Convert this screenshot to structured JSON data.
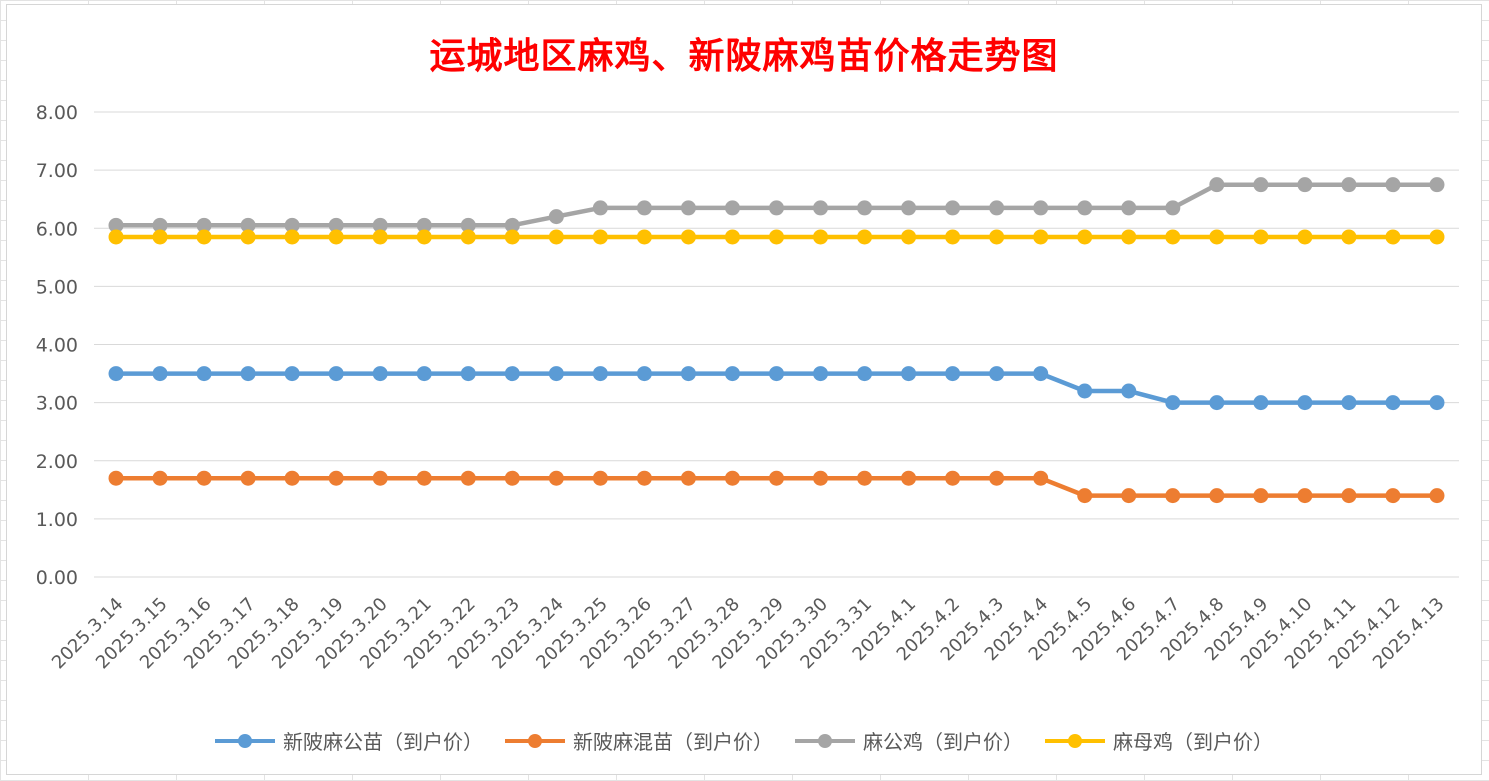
{
  "chart_data": {
    "type": "line",
    "title": "运城地区麻鸡、新陂麻鸡苗价格走势图",
    "xlabel": "",
    "ylabel": "",
    "ylim": [
      0,
      8
    ],
    "y_ticks": [
      "0.00",
      "1.00",
      "2.00",
      "3.00",
      "4.00",
      "5.00",
      "6.00",
      "7.00",
      "8.00"
    ],
    "grid": "horizontal",
    "legend_position": "bottom",
    "categories": [
      "2025.3.14",
      "2025.3.15",
      "2025.3.16",
      "2025.3.17",
      "2025.3.18",
      "2025.3.19",
      "2025.3.20",
      "2025.3.21",
      "2025.3.22",
      "2025.3.23",
      "2025.3.24",
      "2025.3.25",
      "2025.3.26",
      "2025.3.27",
      "2025.3.28",
      "2025.3.29",
      "2025.3.30",
      "2025.3.31",
      "2025.4.1",
      "2025.4.2",
      "2025.4.3",
      "2025.4.4",
      "2025.4.5",
      "2025.4.6",
      "2025.4.7",
      "2025.4.8",
      "2025.4.9",
      "2025.4.10",
      "2025.4.11",
      "2025.4.12",
      "2025.4.13"
    ],
    "series": [
      {
        "name": "新陂麻公苗（到户价）",
        "color": "#5b9bd5",
        "values": [
          3.5,
          3.5,
          3.5,
          3.5,
          3.5,
          3.5,
          3.5,
          3.5,
          3.5,
          3.5,
          3.5,
          3.5,
          3.5,
          3.5,
          3.5,
          3.5,
          3.5,
          3.5,
          3.5,
          3.5,
          3.5,
          3.5,
          3.2,
          3.2,
          3.0,
          3.0,
          3.0,
          3.0,
          3.0,
          3.0,
          3.0
        ]
      },
      {
        "name": "新陂麻混苗（到户价）",
        "color": "#ed7d31",
        "values": [
          1.7,
          1.7,
          1.7,
          1.7,
          1.7,
          1.7,
          1.7,
          1.7,
          1.7,
          1.7,
          1.7,
          1.7,
          1.7,
          1.7,
          1.7,
          1.7,
          1.7,
          1.7,
          1.7,
          1.7,
          1.7,
          1.7,
          1.4,
          1.4,
          1.4,
          1.4,
          1.4,
          1.4,
          1.4,
          1.4,
          1.4
        ]
      },
      {
        "name": "麻公鸡（到户价）",
        "color": "#a5a5a5",
        "values": [
          6.05,
          6.05,
          6.05,
          6.05,
          6.05,
          6.05,
          6.05,
          6.05,
          6.05,
          6.05,
          6.2,
          6.35,
          6.35,
          6.35,
          6.35,
          6.35,
          6.35,
          6.35,
          6.35,
          6.35,
          6.35,
          6.35,
          6.35,
          6.35,
          6.35,
          6.75,
          6.75,
          6.75,
          6.75,
          6.75,
          6.75
        ]
      },
      {
        "name": "麻母鸡（到户价）",
        "color": "#ffc000",
        "values": [
          5.85,
          5.85,
          5.85,
          5.85,
          5.85,
          5.85,
          5.85,
          5.85,
          5.85,
          5.85,
          5.85,
          5.85,
          5.85,
          5.85,
          5.85,
          5.85,
          5.85,
          5.85,
          5.85,
          5.85,
          5.85,
          5.85,
          5.85,
          5.85,
          5.85,
          5.85,
          5.85,
          5.85,
          5.85,
          5.85,
          5.85
        ]
      }
    ]
  }
}
